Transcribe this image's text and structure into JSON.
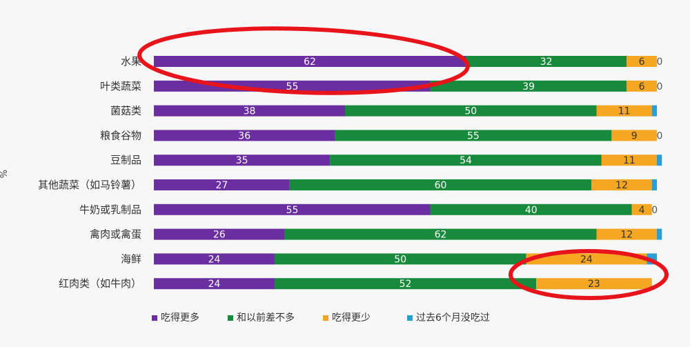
{
  "chart_data": {
    "type": "bar",
    "orientation": "horizontal",
    "stacked": true,
    "y_unit": "%",
    "categories": [
      "水果",
      "叶类蔬菜",
      "菌菇类",
      "粮食谷物",
      "豆制品",
      "其他蔬菜（如马铃薯）",
      "牛奶或乳制品",
      "禽肉或禽蛋",
      "海鲜",
      "红肉类（如牛肉）"
    ],
    "series": [
      {
        "name": "吃得更多",
        "color": "#6a2ea0",
        "values": [
          62,
          55,
          38,
          36,
          35,
          27,
          55,
          26,
          24,
          24
        ],
        "labels": [
          "62",
          "55",
          "38",
          "36",
          "35",
          "27",
          "55",
          "26",
          "24",
          "24"
        ]
      },
      {
        "name": "和以前差不多",
        "color": "#178a3c",
        "values": [
          32,
          39,
          50,
          55,
          54,
          60,
          40,
          62,
          50,
          52
        ],
        "labels": [
          "32",
          "39",
          "50",
          "55",
          "54",
          "60",
          "40",
          "62",
          "50",
          "52"
        ]
      },
      {
        "name": "吃得更少",
        "color": "#f5a623",
        "values": [
          6,
          6,
          11,
          9,
          11,
          12,
          4,
          12,
          24,
          23
        ],
        "labels": [
          "6",
          "6",
          "11",
          "9",
          "11",
          "12",
          "4",
          "12",
          "24",
          "23"
        ]
      },
      {
        "name": "过去6个月没吃过",
        "color": "#2a9fd6",
        "values": [
          0,
          0,
          1,
          0,
          1,
          1,
          0,
          1,
          2,
          0
        ],
        "labels": [
          "0",
          "0",
          "",
          "0",
          "",
          "",
          "0",
          "",
          "",
          ""
        ]
      }
    ],
    "xlim": [
      0,
      100
    ],
    "legend_position": "bottom",
    "grid": false,
    "annotations": [
      {
        "type": "ellipse",
        "color": "#e8141b",
        "target": "水果 吃得更多"
      },
      {
        "type": "ellipse",
        "color": "#e8141b",
        "target": "海鲜 / 红肉类 吃得更少"
      }
    ]
  }
}
